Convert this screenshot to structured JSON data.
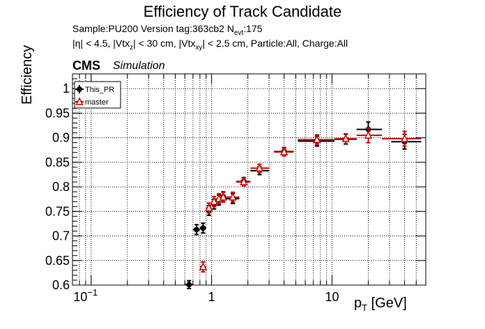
{
  "header": {
    "title": "Efficiency of Track Candidate",
    "info_line1": "Sample:PU200   Version tag:363cb2  N",
    "info_line1_sub": "evt",
    "info_line1_tail": ":175",
    "info_line2": "|η| < 4.5, |Vtx",
    "info_line2_sub1": "z",
    "info_line2_mid": "| < 30 cm, |Vtx",
    "info_line2_sub2": "xy",
    "info_line2_tail": "| < 2.5 cm, Particle:All, Charge:All",
    "cms": "CMS",
    "simulation": "Simulation"
  },
  "colors": {
    "series1": "#000000",
    "series2": "#d10000",
    "frame": "#000000",
    "grid": "#000000"
  },
  "chart_data": {
    "type": "scatter",
    "title": "Efficiency of Track Candidate",
    "xlabel": "p",
    "xlabel_sub": "T",
    "xlabel_unit": " [GeV]",
    "ylabel": "Efficiency",
    "x_scale": "log",
    "xlim": [
      0.07,
      60
    ],
    "ylim": [
      0.6,
      1.03
    ],
    "grid": true,
    "legend_position": "top-left",
    "x_ticks": [
      {
        "value": 0.1,
        "base": "10",
        "exp": "−1"
      },
      {
        "value": 1,
        "base": "1",
        "exp": ""
      },
      {
        "value": 10,
        "base": "10",
        "exp": ""
      }
    ],
    "y_ticks": [
      0.6,
      0.65,
      0.7,
      0.75,
      0.8,
      0.85,
      0.9,
      0.95,
      1
    ],
    "y_tick_labels": [
      "0.6",
      "0.65",
      "0.7",
      "0.75",
      "0.8",
      "0.85",
      "0.9",
      "0.95",
      "1"
    ],
    "series": [
      {
        "name": "This_PR",
        "marker": "filled-circle",
        "points": [
          {
            "x": 0.65,
            "xlo": 0.6,
            "xhi": 0.7,
            "y": 0.601,
            "err": 0.008
          },
          {
            "x": 0.75,
            "xlo": 0.7,
            "xhi": 0.8,
            "y": 0.713,
            "err": 0.01
          },
          {
            "x": 0.85,
            "xlo": 0.8,
            "xhi": 0.9,
            "y": 0.716,
            "err": 0.01
          },
          {
            "x": 0.95,
            "xlo": 0.9,
            "xhi": 1.0,
            "y": 0.752,
            "err": 0.01
          },
          {
            "x": 1.05,
            "xlo": 1.0,
            "xhi": 1.1,
            "y": 0.765,
            "err": 0.01
          },
          {
            "x": 1.15,
            "xlo": 1.1,
            "xhi": 1.2,
            "y": 0.773,
            "err": 0.01
          },
          {
            "x": 1.25,
            "xlo": 1.2,
            "xhi": 1.3,
            "y": 0.78,
            "err": 0.01
          },
          {
            "x": 1.5,
            "xlo": 1.3,
            "xhi": 1.7,
            "y": 0.776,
            "err": 0.01
          },
          {
            "x": 1.85,
            "xlo": 1.6,
            "xhi": 2.1,
            "y": 0.811,
            "err": 0.008
          },
          {
            "x": 2.5,
            "xlo": 2.1,
            "xhi": 3.0,
            "y": 0.833,
            "err": 0.008
          },
          {
            "x": 4.0,
            "xlo": 3.3,
            "xhi": 4.8,
            "y": 0.872,
            "err": 0.008
          },
          {
            "x": 7.5,
            "xlo": 5.2,
            "xhi": 10.5,
            "y": 0.893,
            "err": 0.01
          },
          {
            "x": 13.0,
            "xlo": 10.5,
            "xhi": 16.0,
            "y": 0.897,
            "err": 0.01
          },
          {
            "x": 20.0,
            "xlo": 16.0,
            "xhi": 26.0,
            "y": 0.917,
            "err": 0.015
          },
          {
            "x": 40.0,
            "xlo": 31.0,
            "xhi": 55.0,
            "y": 0.892,
            "err": 0.015
          }
        ]
      },
      {
        "name": "master",
        "marker": "open-triangle",
        "points": [
          {
            "x": 0.85,
            "xlo": 0.8,
            "xhi": 0.9,
            "y": 0.637,
            "err": 0.01
          },
          {
            "x": 0.95,
            "xlo": 0.9,
            "xhi": 1.0,
            "y": 0.757,
            "err": 0.01
          },
          {
            "x": 1.05,
            "xlo": 1.0,
            "xhi": 1.1,
            "y": 0.77,
            "err": 0.01
          },
          {
            "x": 1.15,
            "xlo": 1.1,
            "xhi": 1.2,
            "y": 0.776,
            "err": 0.01
          },
          {
            "x": 1.25,
            "xlo": 1.2,
            "xhi": 1.3,
            "y": 0.779,
            "err": 0.01
          },
          {
            "x": 1.5,
            "xlo": 1.3,
            "xhi": 1.7,
            "y": 0.779,
            "err": 0.01
          },
          {
            "x": 1.85,
            "xlo": 1.6,
            "xhi": 2.1,
            "y": 0.81,
            "err": 0.008
          },
          {
            "x": 2.5,
            "xlo": 2.1,
            "xhi": 3.0,
            "y": 0.838,
            "err": 0.008
          },
          {
            "x": 4.0,
            "xlo": 3.3,
            "xhi": 4.8,
            "y": 0.871,
            "err": 0.008
          },
          {
            "x": 7.5,
            "xlo": 5.2,
            "xhi": 10.5,
            "y": 0.896,
            "err": 0.01
          },
          {
            "x": 13.0,
            "xlo": 10.5,
            "xhi": 16.0,
            "y": 0.898,
            "err": 0.01
          },
          {
            "x": 20.0,
            "xlo": 16.0,
            "xhi": 26.0,
            "y": 0.905,
            "err": 0.015
          },
          {
            "x": 40.0,
            "xlo": 26.0,
            "xhi": 55.0,
            "y": 0.898,
            "err": 0.015
          }
        ]
      }
    ]
  }
}
